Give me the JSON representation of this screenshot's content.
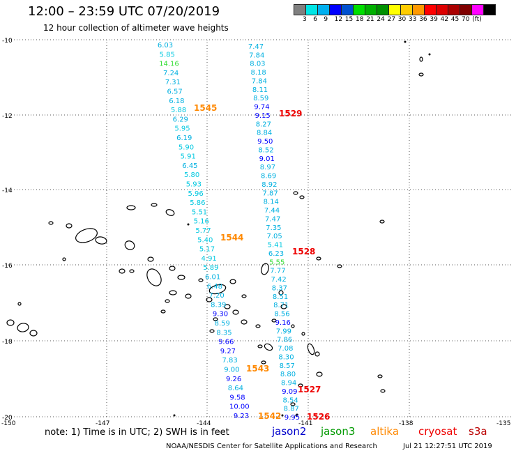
{
  "header": {
    "title": "12:00 – 23:59 UTC 07/20/2019",
    "subtitle": "12 hour collection of altimeter wave heights"
  },
  "color_scale": {
    "colors": [
      "#808080",
      "#00e5e5",
      "#00b0f0",
      "#0000ff",
      "#0050d0",
      "#00e000",
      "#00b000",
      "#009000",
      "#ffff00",
      "#ffcc00",
      "#ff9900",
      "#ff0000",
      "#dd0000",
      "#aa0000",
      "#800000",
      "#ff00ff",
      "#000000"
    ],
    "labels": [
      "3",
      "6",
      "9",
      "12",
      "15",
      "18",
      "21",
      "24",
      "27",
      "30",
      "33",
      "36",
      "39",
      "42",
      "45",
      "70",
      "(ft)"
    ]
  },
  "axes": {
    "lat_labels": [
      "-10",
      "-12",
      "-14",
      "-16",
      "-18",
      "-20"
    ],
    "lon_labels": [
      "-150",
      "-147",
      "-144",
      "-141",
      "-138",
      "-135"
    ]
  },
  "tracks": {
    "left": [
      {
        "v": "6.03",
        "c": "#00b0e0"
      },
      {
        "v": "5.85",
        "c": "#00c8e0"
      },
      {
        "v": "14.16",
        "c": "#33dd33"
      },
      {
        "v": "7.24",
        "c": "#00b0e0"
      },
      {
        "v": "7.31",
        "c": "#00b0e0"
      },
      {
        "v": "6.57",
        "c": "#00b0e0"
      },
      {
        "v": "6.18",
        "c": "#00b0e0"
      },
      {
        "v": "5.88",
        "c": "#00c8e0"
      },
      {
        "v": "6.29",
        "c": "#00b0e0"
      },
      {
        "v": "5.95",
        "c": "#00c8e0"
      },
      {
        "v": "6.19",
        "c": "#00b0e0"
      },
      {
        "v": "5.90",
        "c": "#00c8e0"
      },
      {
        "v": "5.91",
        "c": "#00c8e0"
      },
      {
        "v": "6.45",
        "c": "#00b0e0"
      },
      {
        "v": "5.80",
        "c": "#00c8e0"
      },
      {
        "v": "5.93",
        "c": "#00c8e0"
      },
      {
        "v": "5.96",
        "c": "#00c8e0"
      },
      {
        "v": "5.86",
        "c": "#00c8e0"
      },
      {
        "v": "5.51",
        "c": "#00c8e0"
      },
      {
        "v": "5.16",
        "c": "#00c8e0"
      },
      {
        "v": "5.77",
        "c": "#00c8e0"
      },
      {
        "v": "5.40",
        "c": "#00c8e0"
      },
      {
        "v": "5.17",
        "c": "#00c8e0"
      },
      {
        "v": "4.91",
        "c": "#00c8e0"
      },
      {
        "v": "5.89",
        "c": "#00c8e0"
      },
      {
        "v": "6.01",
        "c": "#00b0e0"
      },
      {
        "v": "6.48",
        "c": "#00b0e0"
      },
      {
        "v": "7.20",
        "c": "#00b0e0"
      },
      {
        "v": "8.39",
        "c": "#00b0e0"
      },
      {
        "v": "9.30",
        "c": "#0000ff"
      },
      {
        "v": "8.59",
        "c": "#00b0e0"
      },
      {
        "v": "8.35",
        "c": "#00b0e0"
      },
      {
        "v": "9.66",
        "c": "#0000ff"
      },
      {
        "v": "9.27",
        "c": "#0000ff"
      },
      {
        "v": "7.83",
        "c": "#00b0e0"
      },
      {
        "v": "9.00",
        "c": "#00b0e0"
      },
      {
        "v": "9.26",
        "c": "#0000ff"
      },
      {
        "v": "8.64",
        "c": "#00b0e0"
      },
      {
        "v": "9.58",
        "c": "#0000ff"
      },
      {
        "v": "10.00",
        "c": "#0000ff"
      },
      {
        "v": "9.23",
        "c": "#0000ff"
      }
    ],
    "right": [
      {
        "v": "7.47",
        "c": "#00b0e0"
      },
      {
        "v": "7.84",
        "c": "#00b0e0"
      },
      {
        "v": "8.03",
        "c": "#00b0e0"
      },
      {
        "v": "8.18",
        "c": "#00b0e0"
      },
      {
        "v": "7.84",
        "c": "#00b0e0"
      },
      {
        "v": "8.11",
        "c": "#00b0e0"
      },
      {
        "v": "8.59",
        "c": "#00b0e0"
      },
      {
        "v": "9.74",
        "c": "#0000ff"
      },
      {
        "v": "9.15",
        "c": "#0000ff"
      },
      {
        "v": "8.27",
        "c": "#00b0e0"
      },
      {
        "v": "8.84",
        "c": "#00b0e0"
      },
      {
        "v": "9.50",
        "c": "#0000ff"
      },
      {
        "v": "8.52",
        "c": "#00b0e0"
      },
      {
        "v": "9.01",
        "c": "#0000ff"
      },
      {
        "v": "8.97",
        "c": "#00b0e0"
      },
      {
        "v": "8.69",
        "c": "#00b0e0"
      },
      {
        "v": "8.92",
        "c": "#00b0e0"
      },
      {
        "v": "7.87",
        "c": "#00b0e0"
      },
      {
        "v": "8.14",
        "c": "#00b0e0"
      },
      {
        "v": "7.44",
        "c": "#00b0e0"
      },
      {
        "v": "7.47",
        "c": "#00b0e0"
      },
      {
        "v": "7.35",
        "c": "#00b0e0"
      },
      {
        "v": "7.05",
        "c": "#00b0e0"
      },
      {
        "v": "5.41",
        "c": "#00c8e0"
      },
      {
        "v": "6.23",
        "c": "#00b0e0"
      },
      {
        "v": "5.55",
        "c": "#33dd33"
      },
      {
        "v": "7.77",
        "c": "#00b0e0"
      },
      {
        "v": "7.42",
        "c": "#00b0e0"
      },
      {
        "v": "8.37",
        "c": "#00b0e0"
      },
      {
        "v": "8.51",
        "c": "#00b0e0"
      },
      {
        "v": "8.71",
        "c": "#00b0e0"
      },
      {
        "v": "8.56",
        "c": "#00b0e0"
      },
      {
        "v": "9.16",
        "c": "#0000ff"
      },
      {
        "v": "7.99",
        "c": "#00b0e0"
      },
      {
        "v": "7.86",
        "c": "#00b0e0"
      },
      {
        "v": "7.08",
        "c": "#00b0e0"
      },
      {
        "v": "8.30",
        "c": "#00b0e0"
      },
      {
        "v": "8.57",
        "c": "#00b0e0"
      },
      {
        "v": "8.80",
        "c": "#00b0e0"
      },
      {
        "v": "8.94",
        "c": "#00b0e0"
      },
      {
        "v": "9.09",
        "c": "#0000ff"
      },
      {
        "v": "8.54",
        "c": "#00b0e0"
      },
      {
        "v": "8.87",
        "c": "#00b0e0"
      },
      {
        "v": "9.95",
        "c": "#0000ff"
      }
    ]
  },
  "pass_times": [
    {
      "t": "1545",
      "c": "#ff8800"
    },
    {
      "t": "1529",
      "c": "#ee0000"
    },
    {
      "t": "1544",
      "c": "#ff8800"
    },
    {
      "t": "1528",
      "c": "#ee0000"
    },
    {
      "t": "1543",
      "c": "#ff8800"
    },
    {
      "t": "1527",
      "c": "#ee0000"
    },
    {
      "t": "1542",
      "c": "#ff8800"
    },
    {
      "t": "1526",
      "c": "#ee0000"
    }
  ],
  "footer": {
    "note": "note:  1) Time is in UTC;  2) SWH is in feet",
    "satellites": [
      {
        "name": "jason2",
        "color": "#0000cc"
      },
      {
        "name": "jason3",
        "color": "#009900"
      },
      {
        "name": "altika",
        "color": "#ff8800"
      },
      {
        "name": "cryosat",
        "color": "#ee0000"
      },
      {
        "name": "s3a",
        "color": "#bb0000"
      }
    ],
    "credit": "NOAA/NESDIS Center for Satellite Applications and Research",
    "timestamp": "Jul 21 12:27:51 UTC 2019"
  }
}
